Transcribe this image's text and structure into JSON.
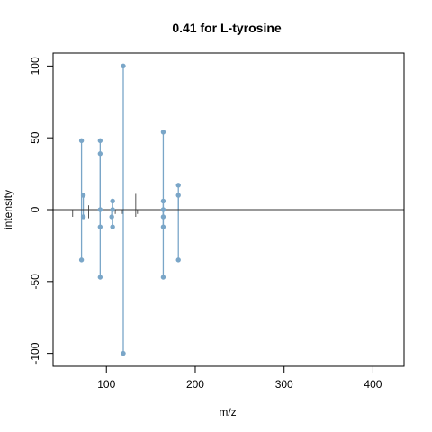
{
  "chart_data": {
    "type": "spectrum_mirror",
    "title": "0.41 for L-tyrosine",
    "xlabel": "m/z",
    "ylabel": "intensity",
    "xlim": [
      40,
      435
    ],
    "ylim": [
      -109,
      109
    ],
    "x_ticks": [
      100,
      200,
      300,
      400
    ],
    "y_ticks": [
      -100,
      -50,
      0,
      50,
      100
    ],
    "grid": false,
    "legend": "none",
    "colors": {
      "matched": "#7aa6c8",
      "unmatched": "#555555",
      "zero_line": "#333333",
      "axes": "#000000"
    },
    "matched_peaks_top": [
      {
        "mz": 72,
        "intensity": 48
      },
      {
        "mz": 74,
        "intensity": 10
      },
      {
        "mz": 93,
        "intensity": 48
      },
      {
        "mz": 93,
        "intensity": 39
      },
      {
        "mz": 107,
        "intensity": 6
      },
      {
        "mz": 119,
        "intensity": 100
      },
      {
        "mz": 164,
        "intensity": 54
      },
      {
        "mz": 164,
        "intensity": 6
      },
      {
        "mz": 181,
        "intensity": 17
      },
      {
        "mz": 181,
        "intensity": 10
      }
    ],
    "matched_peaks_bottom": [
      {
        "mz": 72,
        "intensity": -35
      },
      {
        "mz": 74,
        "intensity": -5
      },
      {
        "mz": 93,
        "intensity": -47
      },
      {
        "mz": 93,
        "intensity": -12
      },
      {
        "mz": 93,
        "intensity": 0
      },
      {
        "mz": 106,
        "intensity": -5
      },
      {
        "mz": 107,
        "intensity": -12
      },
      {
        "mz": 107,
        "intensity": 0
      },
      {
        "mz": 119,
        "intensity": -100
      },
      {
        "mz": 164,
        "intensity": -47
      },
      {
        "mz": 164,
        "intensity": -12
      },
      {
        "mz": 164,
        "intensity": -5
      },
      {
        "mz": 164,
        "intensity": 0
      },
      {
        "mz": 181,
        "intensity": -35
      }
    ],
    "unmatched_peaks": [
      {
        "mz": 62,
        "intensity": -5
      },
      {
        "mz": 80,
        "intensity": -6
      },
      {
        "mz": 80,
        "intensity": 3
      },
      {
        "mz": 110,
        "intensity": -3
      },
      {
        "mz": 118,
        "intensity": -3
      },
      {
        "mz": 133,
        "intensity": 11
      },
      {
        "mz": 133,
        "intensity": -5
      },
      {
        "mz": 135,
        "intensity": -3
      }
    ]
  }
}
